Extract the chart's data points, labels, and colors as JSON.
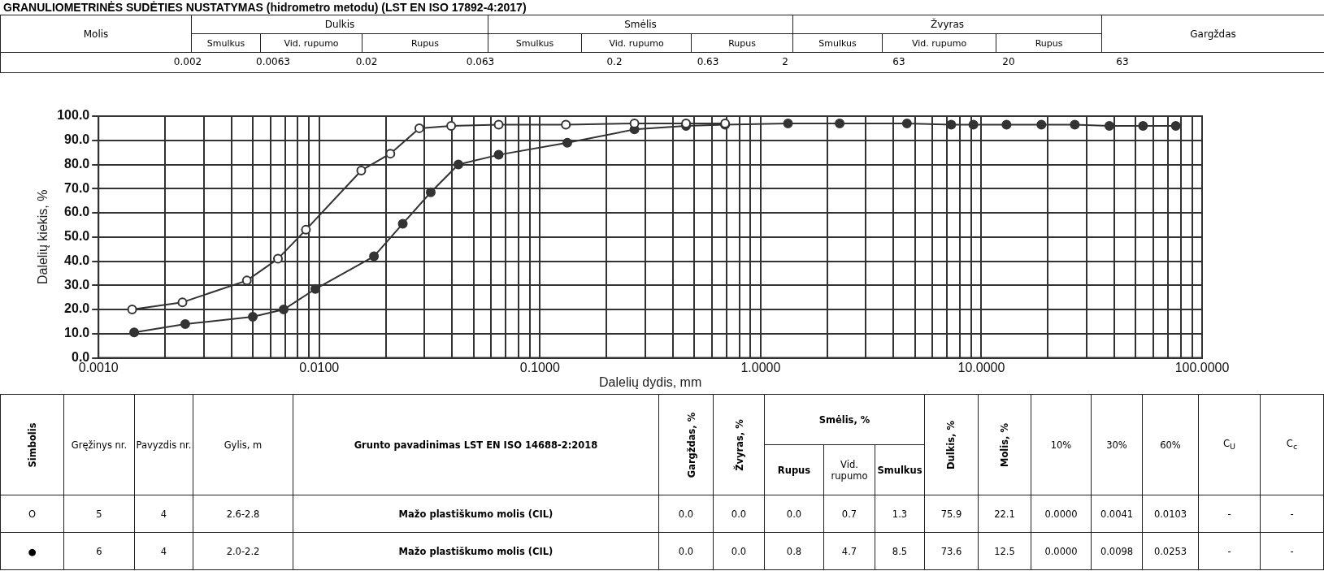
{
  "chart_data": {
    "type": "line",
    "title": "GRANULIOMETRINĖS SUDĖTIES NUSTATYMAS (hidrometro metodu) (LST EN ISO 17892-4:2017)",
    "xlabel": "Dalelių dydis, mm",
    "ylabel": "Dalelių kiekis, %",
    "log": "x",
    "grid": true,
    "legend": false,
    "marker": "circle",
    "line_style": "solid",
    "xlim": [
      0.001,
      100
    ],
    "xticks": [
      {
        "value": 0.001,
        "label": "0.0010"
      },
      {
        "value": 0.002,
        "label": null
      },
      {
        "value": 0.003,
        "label": null
      },
      {
        "value": 0.004,
        "label": null
      },
      {
        "value": 0.005,
        "label": null
      },
      {
        "value": 0.006,
        "label": null
      },
      {
        "value": 0.007,
        "label": null
      },
      {
        "value": 0.008,
        "label": null
      },
      {
        "value": 0.009,
        "label": null
      },
      {
        "value": 0.01,
        "label": "0.0100"
      },
      {
        "value": 0.02,
        "label": null
      },
      {
        "value": 0.03,
        "label": null
      },
      {
        "value": 0.04,
        "label": null
      },
      {
        "value": 0.05,
        "label": null
      },
      {
        "value": 0.06,
        "label": null
      },
      {
        "value": 0.07,
        "label": null
      },
      {
        "value": 0.08,
        "label": null
      },
      {
        "value": 0.09,
        "label": null
      },
      {
        "value": 0.1,
        "label": "0.1000"
      },
      {
        "value": 0.2,
        "label": null
      },
      {
        "value": 0.3,
        "label": null
      },
      {
        "value": 0.4,
        "label": null
      },
      {
        "value": 0.5,
        "label": null
      },
      {
        "value": 0.6,
        "label": null
      },
      {
        "value": 0.7,
        "label": null
      },
      {
        "value": 0.8,
        "label": null
      },
      {
        "value": 0.9,
        "label": null
      },
      {
        "value": 1,
        "label": "1.0000"
      },
      {
        "value": 2,
        "label": null
      },
      {
        "value": 3,
        "label": null
      },
      {
        "value": 4,
        "label": null
      },
      {
        "value": 5,
        "label": null
      },
      {
        "value": 6,
        "label": null
      },
      {
        "value": 7,
        "label": null
      },
      {
        "value": 8,
        "label": null
      },
      {
        "value": 9,
        "label": null
      },
      {
        "value": 10,
        "label": "10.0000"
      },
      {
        "value": 20,
        "label": null
      },
      {
        "value": 30,
        "label": null
      },
      {
        "value": 40,
        "label": null
      },
      {
        "value": 50,
        "label": null
      },
      {
        "value": 60,
        "label": null
      },
      {
        "value": 70,
        "label": null
      },
      {
        "value": 80,
        "label": null
      },
      {
        "value": 90,
        "label": null
      },
      {
        "value": 100,
        "label": "100.0000"
      }
    ],
    "ylim": [
      0,
      100
    ],
    "yticks": [
      {
        "value": 0,
        "label": "0.0"
      },
      {
        "value": 10,
        "label": "10.0"
      },
      {
        "value": 20,
        "label": "20.0"
      },
      {
        "value": 30,
        "label": "30.0"
      },
      {
        "value": 40,
        "label": "40.0"
      },
      {
        "value": 50,
        "label": "50.0"
      },
      {
        "value": 60,
        "label": "60.0"
      },
      {
        "value": 70,
        "label": "70.0"
      },
      {
        "value": 80,
        "label": "80.0"
      },
      {
        "value": 90,
        "label": "90.0"
      },
      {
        "value": 100,
        "label": "100.0"
      }
    ],
    "series": [
      {
        "color": "#333333",
        "x": [
          0.00142,
          0.0024,
          0.0047,
          0.0065,
          0.0087,
          0.0155,
          0.021,
          0.0284,
          0.0396,
          0.065,
          0.131,
          0.268,
          0.459,
          0.69
        ],
        "values": [
          20,
          23,
          32,
          41,
          53,
          77.5,
          84.5,
          95,
          96,
          96.5,
          96.5,
          97,
          97,
          97
        ]
      },
      {
        "color": "#333333",
        "x": [
          0.00145,
          0.00247,
          0.005,
          0.0069,
          0.0096,
          0.0177,
          0.0239,
          0.032,
          0.0427,
          0.065,
          0.133,
          0.268,
          0.459,
          0.69,
          1.33,
          2.28,
          4.6,
          7.3,
          9.2,
          13,
          18.7,
          26.5,
          38,
          54,
          76
        ],
        "values": [
          10.5,
          14,
          17,
          20,
          28.5,
          42,
          55.5,
          68.5,
          80,
          84,
          89,
          94.5,
          96,
          96.5,
          97,
          97,
          97,
          96.5,
          96.5,
          96.5,
          96.5,
          96.5,
          96,
          96,
          96
        ]
      }
    ],
    "annotations": [
      "Molis",
      "Dulkis",
      "Smėlis",
      "Žvyras",
      "Gargždas",
      "Smulkus",
      "Vid. rupumo",
      "Rupus",
      "Smulkus",
      "Vid. rupumo",
      "Rupus",
      "Smulkus",
      "Vid. rupumo",
      "Rupus",
      "0.002",
      "0.0063",
      "0.02",
      "0.063",
      "0.2",
      "0.63",
      "2",
      "63",
      "20",
      "63",
      "Simbolis",
      "Gręžinys nr.",
      "Pavyzdis nr.",
      "Gylis, m",
      "Grunto pavadinimas LST EN ISO 14688-2:2018",
      "Gargždas, %",
      "Žvyras, %",
      "Smėlis, %",
      "Rupus",
      "Vid. rupumo",
      "Smulkus",
      "Dulkis, %",
      "Molis, %",
      "10%",
      "30%",
      "60%",
      "C$_{U}$",
      "C$_{c}$",
      "O",
      "5",
      "4",
      "2.6-2.8",
      "Mažo plastiškumo molis (CIL)",
      "0.0",
      "0.0",
      "0.0",
      "0.7",
      "1.3",
      "75.9",
      "22.1",
      "0.0000",
      "0.0041",
      "0.0103",
      "-",
      "-",
      "●",
      "6",
      "4",
      "2.0-2.2",
      "Mažo plastiškumo molis (CIL)",
      "0.0",
      "0.0",
      "0.8",
      "4.7",
      "8.5",
      "73.6",
      "12.5",
      "0.0000",
      "0.0098",
      "0.0253",
      "-",
      "-"
    ]
  }
}
